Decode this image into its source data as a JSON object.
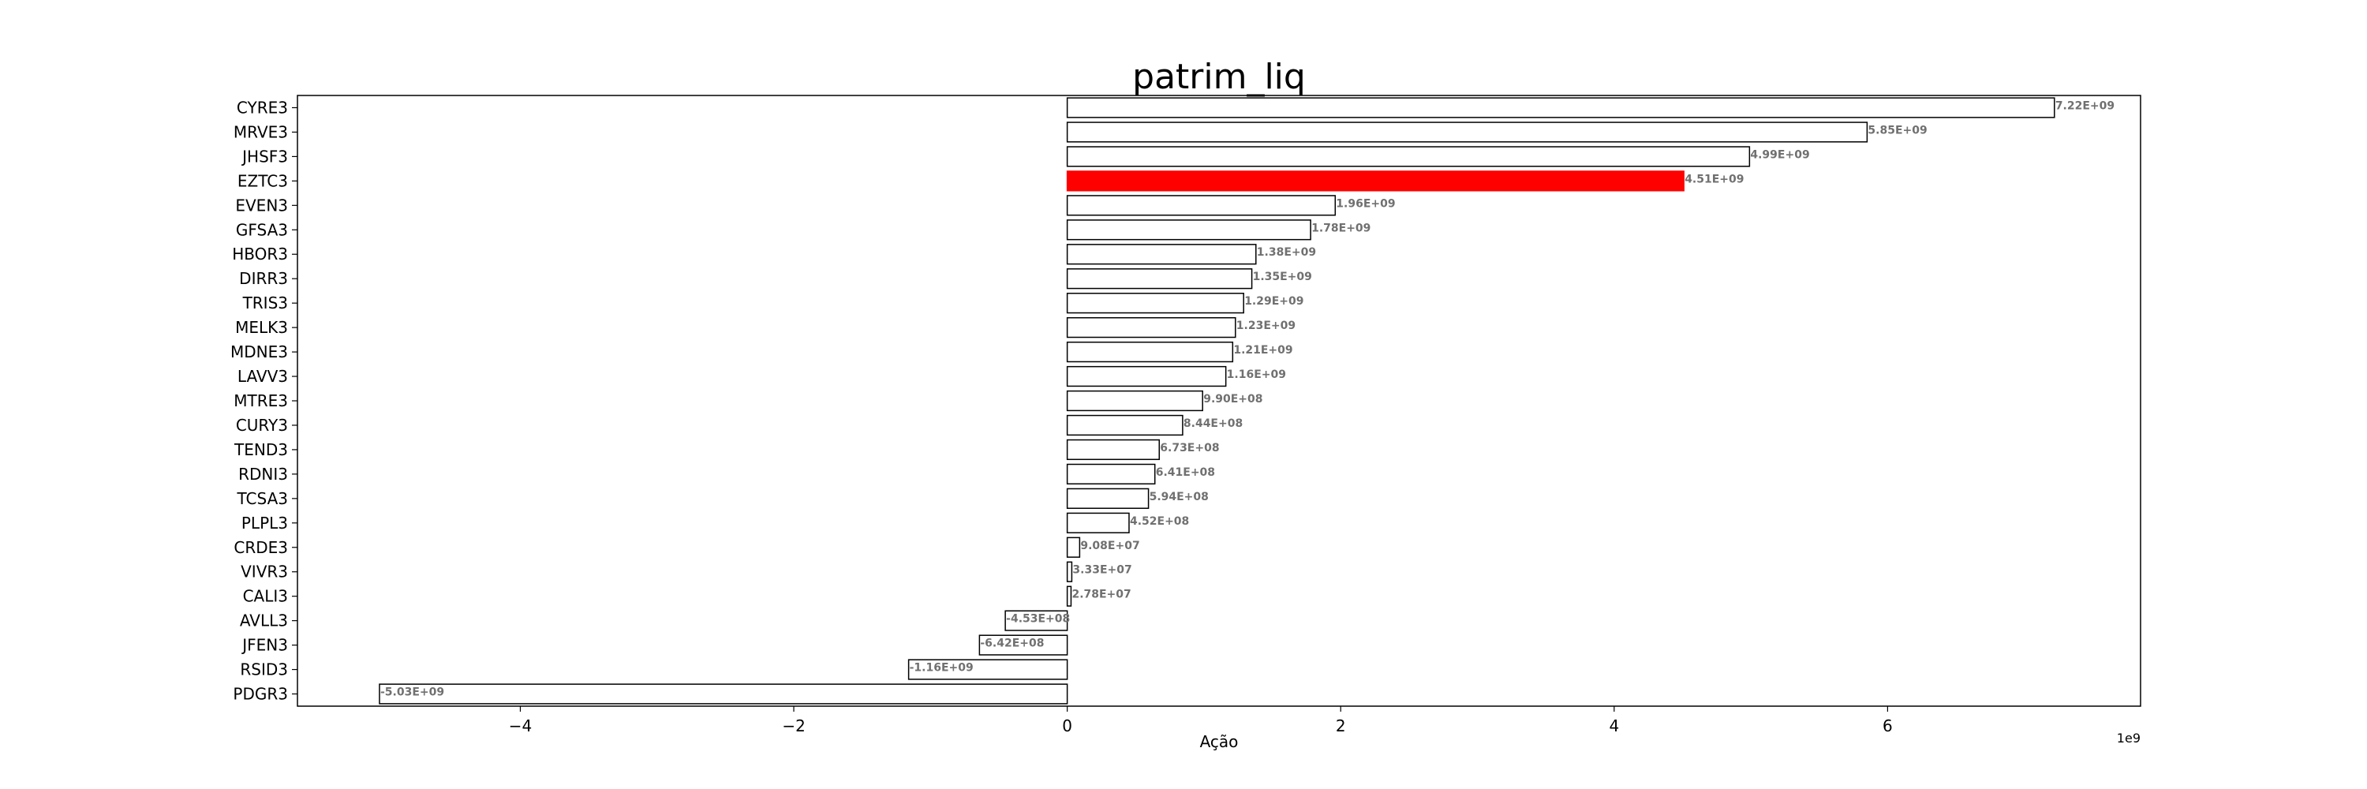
{
  "chart_data": {
    "type": "bar",
    "orientation": "horizontal",
    "title": "patrim_liq",
    "xlabel": "Ação",
    "ylabel": "",
    "x_offset_label": "1e9",
    "xlim": [
      -5.63,
      7.85
    ],
    "x_ticks": [
      -4,
      -2,
      0,
      2,
      4,
      6
    ],
    "x_tick_labels": [
      "−4",
      "−2",
      "0",
      "2",
      "4",
      "6"
    ],
    "grid": false,
    "highlight_color": "#ff0000",
    "default_fill": "#ffffff",
    "edge_color": "#000000",
    "categories": [
      "CYRE3",
      "MRVE3",
      "JHSF3",
      "EZTC3",
      "EVEN3",
      "GFSA3",
      "HBOR3",
      "DIRR3",
      "TRIS3",
      "MELK3",
      "MDNE3",
      "LAVV3",
      "MTRE3",
      "CURY3",
      "TEND3",
      "RDNI3",
      "TCSA3",
      "PLPL3",
      "CRDE3",
      "VIVR3",
      "CALI3",
      "AVLL3",
      "JFEN3",
      "RSID3",
      "PDGR3"
    ],
    "values": [
      7220000000.0,
      5850000000.0,
      4990000000.0,
      4510000000.0,
      1960000000.0,
      1780000000.0,
      1380000000.0,
      1350000000.0,
      1290000000.0,
      1230000000.0,
      1210000000.0,
      1160000000.0,
      990000000.0,
      844000000.0,
      673000000.0,
      641000000.0,
      594000000.0,
      452000000.0,
      90800000.0,
      33300000.0,
      27800000.0,
      -453000000.0,
      -642000000.0,
      -1160000000.0,
      -5030000000.0
    ],
    "value_labels": [
      "7.22E+09",
      "5.85E+09",
      "4.99E+09",
      "4.51E+09",
      "1.96E+09",
      "1.78E+09",
      "1.38E+09",
      "1.35E+09",
      "1.29E+09",
      "1.23E+09",
      "1.21E+09",
      "1.16E+09",
      "9.90E+08",
      "8.44E+08",
      "6.73E+08",
      "6.41E+08",
      "5.94E+08",
      "4.52E+08",
      "9.08E+07",
      "3.33E+07",
      "2.78E+07",
      "-4.53E+08",
      "-6.42E+08",
      "-1.16E+09",
      "-5.03E+09"
    ],
    "highlighted": [
      "EZTC3"
    ]
  }
}
